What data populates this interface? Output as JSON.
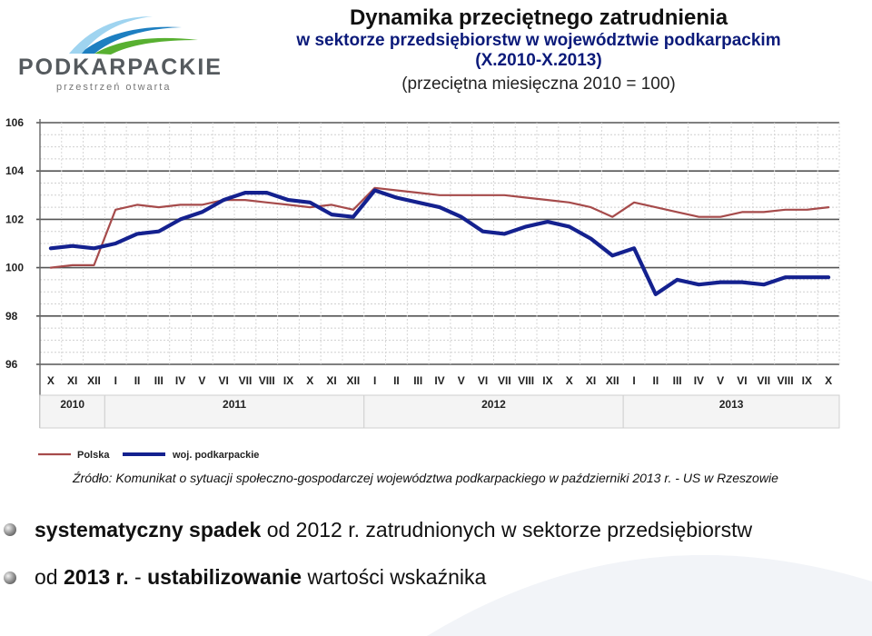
{
  "logo": {
    "name": "PODKARPACKIE",
    "tagline": "przestrzeń otwarta"
  },
  "header": {
    "title": "Dynamika przeciętnego zatrudnienia",
    "line2": "w sektorze przedsiębiorstw w województwie podkarpackim",
    "line3": "(X.2010-X.2013)",
    "line4": "(przeciętna miesięczna 2010 = 100)"
  },
  "chart_data": {
    "type": "line",
    "ylim": [
      96,
      106
    ],
    "yticks": [
      "106",
      "104",
      "102",
      "100",
      "98",
      "96"
    ],
    "grid": true,
    "legend_position": "bottom-left",
    "categories": [
      "X",
      "XI",
      "XII",
      "I",
      "II",
      "III",
      "IV",
      "V",
      "VI",
      "VII",
      "VIII",
      "IX",
      "X",
      "XI",
      "XII",
      "I",
      "II",
      "III",
      "IV",
      "V",
      "VI",
      "VII",
      "VIII",
      "IX",
      "X",
      "XI",
      "XII",
      "I",
      "II",
      "III",
      "IV",
      "V",
      "VI",
      "VII",
      "VIII",
      "IX",
      "X"
    ],
    "years": [
      {
        "label": "2010",
        "start": 0,
        "end": 2
      },
      {
        "label": "2011",
        "start": 3,
        "end": 14
      },
      {
        "label": "2012",
        "start": 15,
        "end": 26
      },
      {
        "label": "2013",
        "start": 27,
        "end": 36
      }
    ],
    "series": [
      {
        "name": "Polska",
        "color": "#a64b4b",
        "values": [
          100.0,
          100.1,
          100.1,
          102.4,
          102.6,
          102.5,
          102.6,
          102.6,
          102.8,
          102.8,
          102.7,
          102.6,
          102.5,
          102.6,
          102.4,
          103.3,
          103.2,
          103.1,
          103.0,
          103.0,
          103.0,
          103.0,
          102.9,
          102.8,
          102.7,
          102.5,
          102.1,
          102.7,
          102.5,
          102.3,
          102.1,
          102.1,
          102.3,
          102.3,
          102.4,
          102.4,
          102.5
        ]
      },
      {
        "name": "woj. podkarpackie",
        "color": "#14218f",
        "values": [
          100.8,
          100.9,
          100.8,
          101.0,
          101.4,
          101.5,
          102.0,
          102.3,
          102.8,
          103.1,
          103.1,
          102.8,
          102.7,
          102.2,
          102.1,
          103.2,
          102.9,
          102.7,
          102.5,
          102.1,
          101.5,
          101.4,
          101.7,
          101.9,
          101.7,
          101.2,
          100.5,
          100.8,
          98.9,
          99.5,
          99.3,
          99.4,
          99.4,
          99.3,
          99.6,
          99.6,
          99.6
        ]
      }
    ]
  },
  "source_text": "Źródło: Komunikat o sytuacji społeczno-gospodarczej województwa podkarpackiego w październiki 2013 r. - US w Rzeszowie",
  "bullets": [
    {
      "bold": "systematyczny spadek",
      "rest": " od 2012 r. zatrudnionych w sektorze przedsiębiorstw"
    },
    {
      "pre": "od ",
      "bold1": "2013 r.",
      "mid": " - ",
      "bold2": "ustabilizowanie",
      "rest": " wartości wskaźnika"
    }
  ]
}
